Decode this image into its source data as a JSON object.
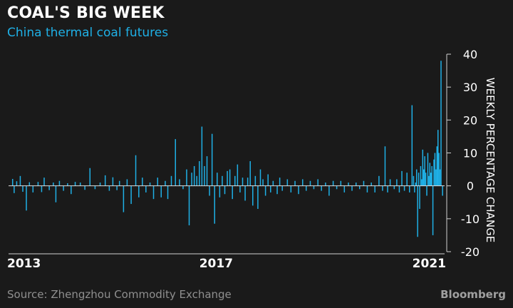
{
  "header": {
    "title": "COAL'S BIG WEEK",
    "subtitle": "China thermal coal futures"
  },
  "footer": {
    "source": "Source: Zhengzhou Commodity Exchange",
    "brand": "Bloomberg"
  },
  "colors": {
    "background": "#1a1a1a",
    "bar": "#1fb0e6",
    "text": "#ffffff",
    "muted": "#8f8f8f"
  },
  "chart_data": {
    "type": "bar",
    "title": "COAL'S BIG WEEK",
    "subtitle": "China thermal coal futures",
    "xlabel": "",
    "ylabel": "WEEKLY PERCENTAGE CHANGE",
    "ylim": [
      -20,
      40
    ],
    "yticks": [
      40,
      30,
      20,
      10,
      0,
      -10,
      -20
    ],
    "xlim": [
      2012.92,
      2021.49
    ],
    "xticks": [
      {
        "x": 2013,
        "label": "2013"
      },
      {
        "x": 2017,
        "label": "2017"
      },
      {
        "x": 2021,
        "label": "2021"
      }
    ],
    "y_axis_position": "right",
    "grid": false,
    "legend": "none",
    "series": [
      {
        "values": [
          [
            2013.0,
            2.1
          ],
          [
            2013.03,
            -2.2
          ],
          [
            2013.08,
            1.4
          ],
          [
            2013.15,
            3.0
          ],
          [
            2013.2,
            -1.8
          ],
          [
            2013.27,
            -7.5
          ],
          [
            2013.33,
            1.1
          ],
          [
            2013.4,
            -2.0
          ],
          [
            2013.5,
            1.2
          ],
          [
            2013.57,
            -1.9
          ],
          [
            2013.62,
            2.5
          ],
          [
            2013.72,
            -1.3
          ],
          [
            2013.8,
            1.0
          ],
          [
            2013.85,
            -5.0
          ],
          [
            2013.92,
            1.5
          ],
          [
            2014.0,
            -1.5
          ],
          [
            2014.08,
            0.8
          ],
          [
            2014.15,
            -2.5
          ],
          [
            2014.23,
            1.2
          ],
          [
            2014.33,
            1.0
          ],
          [
            2014.42,
            -1.2
          ],
          [
            2014.52,
            5.4
          ],
          [
            2014.62,
            -1.0
          ],
          [
            2014.72,
            1.0
          ],
          [
            2014.82,
            3.2
          ],
          [
            2014.9,
            -1.5
          ],
          [
            2014.97,
            2.6
          ],
          [
            2015.05,
            -1.3
          ],
          [
            2015.1,
            1.5
          ],
          [
            2015.18,
            -8.0
          ],
          [
            2015.25,
            2.0
          ],
          [
            2015.33,
            -5.5
          ],
          [
            2015.42,
            9.3
          ],
          [
            2015.48,
            -3.5
          ],
          [
            2015.55,
            2.5
          ],
          [
            2015.62,
            -2.0
          ],
          [
            2015.7,
            1.0
          ],
          [
            2015.77,
            -4.0
          ],
          [
            2015.85,
            2.5
          ],
          [
            2015.92,
            -3.5
          ],
          [
            2016.0,
            1.5
          ],
          [
            2016.05,
            -4.0
          ],
          [
            2016.12,
            3.0
          ],
          [
            2016.2,
            14.2
          ],
          [
            2016.28,
            2.0
          ],
          [
            2016.35,
            -1.0
          ],
          [
            2016.42,
            5.0
          ],
          [
            2016.47,
            -12.0
          ],
          [
            2016.52,
            4.0
          ],
          [
            2016.57,
            6.0
          ],
          [
            2016.62,
            3.0
          ],
          [
            2016.67,
            7.5
          ],
          [
            2016.72,
            18.0
          ],
          [
            2016.77,
            6.0
          ],
          [
            2016.82,
            9.0
          ],
          [
            2016.87,
            -3.0
          ],
          [
            2016.92,
            15.8
          ],
          [
            2016.97,
            -11.5
          ],
          [
            2017.02,
            4.0
          ],
          [
            2017.07,
            -3.5
          ],
          [
            2017.12,
            3.0
          ],
          [
            2017.17,
            -2.5
          ],
          [
            2017.22,
            4.5
          ],
          [
            2017.27,
            5.0
          ],
          [
            2017.32,
            -4.0
          ],
          [
            2017.37,
            3.0
          ],
          [
            2017.42,
            6.5
          ],
          [
            2017.47,
            -2.0
          ],
          [
            2017.52,
            2.5
          ],
          [
            2017.57,
            -4.5
          ],
          [
            2017.62,
            2.5
          ],
          [
            2017.67,
            7.5
          ],
          [
            2017.72,
            -6.0
          ],
          [
            2017.77,
            3.0
          ],
          [
            2017.82,
            -7.0
          ],
          [
            2017.87,
            5.0
          ],
          [
            2017.92,
            2.0
          ],
          [
            2017.97,
            -3.0
          ],
          [
            2018.02,
            3.5
          ],
          [
            2018.07,
            -2.0
          ],
          [
            2018.12,
            1.5
          ],
          [
            2018.2,
            -2.5
          ],
          [
            2018.25,
            2.5
          ],
          [
            2018.3,
            -1.5
          ],
          [
            2018.4,
            2.0
          ],
          [
            2018.47,
            -2.0
          ],
          [
            2018.55,
            1.5
          ],
          [
            2018.62,
            -2.5
          ],
          [
            2018.7,
            2.0
          ],
          [
            2018.77,
            -1.5
          ],
          [
            2018.85,
            1.5
          ],
          [
            2018.92,
            -1.0
          ],
          [
            2019.0,
            2.0
          ],
          [
            2019.07,
            -1.5
          ],
          [
            2019.15,
            1.0
          ],
          [
            2019.22,
            -3.0
          ],
          [
            2019.3,
            1.5
          ],
          [
            2019.37,
            -1.0
          ],
          [
            2019.45,
            1.5
          ],
          [
            2019.52,
            -2.0
          ],
          [
            2019.6,
            1.0
          ],
          [
            2019.67,
            -1.5
          ],
          [
            2019.75,
            1.0
          ],
          [
            2019.82,
            -1.0
          ],
          [
            2019.9,
            1.5
          ],
          [
            2019.97,
            -2.0
          ],
          [
            2020.05,
            1.0
          ],
          [
            2020.12,
            -2.0
          ],
          [
            2020.2,
            3.0
          ],
          [
            2020.27,
            -1.5
          ],
          [
            2020.32,
            12.0
          ],
          [
            2020.37,
            -2.0
          ],
          [
            2020.42,
            2.0
          ],
          [
            2020.5,
            -1.0
          ],
          [
            2020.55,
            2.0
          ],
          [
            2020.6,
            -2.0
          ],
          [
            2020.65,
            4.5
          ],
          [
            2020.7,
            -1.5
          ],
          [
            2020.75,
            4.0
          ],
          [
            2020.8,
            -2.0
          ],
          [
            2020.85,
            24.5
          ],
          [
            2020.88,
            3.0
          ],
          [
            2020.9,
            -2.0
          ],
          [
            2020.92,
            1.0
          ],
          [
            2020.94,
            5.0
          ],
          [
            2020.96,
            -15.5
          ],
          [
            2020.98,
            4.0
          ],
          [
            2021.0,
            -7.0
          ],
          [
            2021.02,
            6.0
          ],
          [
            2021.04,
            2.0
          ],
          [
            2021.06,
            11.0
          ],
          [
            2021.08,
            5.0
          ],
          [
            2021.1,
            9.0
          ],
          [
            2021.12,
            4.0
          ],
          [
            2021.14,
            -3.0
          ],
          [
            2021.16,
            10.0
          ],
          [
            2021.18,
            3.0
          ],
          [
            2021.2,
            7.0
          ],
          [
            2021.22,
            4.0
          ],
          [
            2021.24,
            6.0
          ],
          [
            2021.26,
            -15.0
          ],
          [
            2021.28,
            8.0
          ],
          [
            2021.3,
            10.0
          ],
          [
            2021.32,
            5.0
          ],
          [
            2021.34,
            12.0
          ],
          [
            2021.36,
            17.0
          ],
          [
            2021.38,
            10.0
          ],
          [
            2021.4,
            5.0
          ],
          [
            2021.42,
            38.0
          ],
          [
            2021.45,
            -3.0
          ]
        ]
      }
    ]
  }
}
